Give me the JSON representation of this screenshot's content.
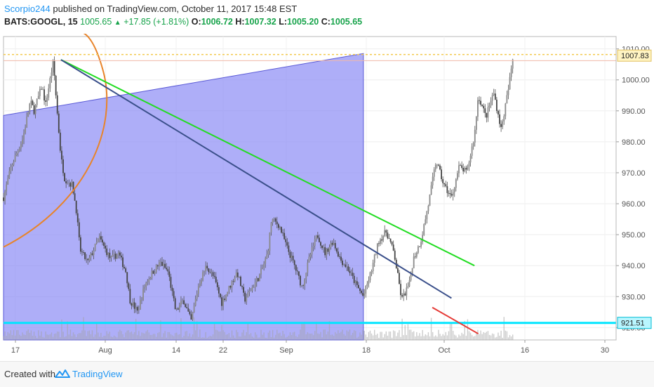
{
  "header": {
    "author": "Scorpio244",
    "publish_text": "published on TradingView.com, October 11, 2017 15:48 EST",
    "symbol": "BATS:GOOGL, 15",
    "last": "1005.65",
    "change": "+17.85 (+1.81%)",
    "o_label": "O:",
    "o_val": "1006.72",
    "h_label": "H:",
    "h_val": "1007.32",
    "l_label": "L:",
    "l_val": "1005.20",
    "c_label": "C:",
    "c_val": "1005.65"
  },
  "footer": {
    "created_with": "Created with",
    "brand": "TradingView"
  },
  "colors": {
    "shade": "#8f8ff5",
    "support": "#00e5ff",
    "resistance_dotted": "#f2c94c",
    "green_line": "#22dd22",
    "navy_line": "#3a4f8a",
    "red_line": "#e53935",
    "arc": "#e8842a",
    "candle": "#555555"
  },
  "chart_data": {
    "type": "candlestick",
    "ylim": [
      916,
      1014
    ],
    "y_ticks": [
      "1010.00",
      "1000.00",
      "990.00",
      "980.00",
      "970.00",
      "960.00",
      "950.00",
      "940.00",
      "930.00",
      "920.00"
    ],
    "y_tick_values": [
      1010,
      1000,
      990,
      980,
      970,
      960,
      950,
      940,
      930,
      920
    ],
    "x_ticks": [
      "17",
      "Aug",
      "14",
      "22",
      "Sep",
      "18",
      "Oct",
      "16",
      "30"
    ],
    "price_labels": [
      {
        "text": "1007.83",
        "value": 1007.83
      },
      {
        "text": "921.51",
        "value": 921.51
      }
    ],
    "close_path": [
      [
        0,
        962
      ],
      [
        2,
        972
      ],
      [
        5,
        981
      ],
      [
        7,
        993
      ],
      [
        8,
        990
      ],
      [
        10,
        998
      ],
      [
        11,
        992
      ],
      [
        13,
        1006
      ],
      [
        14,
        990
      ],
      [
        15,
        975
      ],
      [
        16,
        968
      ],
      [
        18,
        966
      ],
      [
        19,
        958
      ],
      [
        20,
        945
      ],
      [
        22,
        941
      ],
      [
        25,
        949
      ],
      [
        28,
        942
      ],
      [
        30,
        944
      ],
      [
        32,
        938
      ],
      [
        33,
        929
      ],
      [
        35,
        925
      ],
      [
        37,
        934
      ],
      [
        39,
        938
      ],
      [
        41,
        941
      ],
      [
        43,
        938
      ],
      [
        45,
        925
      ],
      [
        47,
        929
      ],
      [
        49,
        922
      ],
      [
        51,
        934
      ],
      [
        53,
        940
      ],
      [
        55,
        936
      ],
      [
        57,
        928
      ],
      [
        59,
        933
      ],
      [
        61,
        938
      ],
      [
        63,
        929
      ],
      [
        65,
        933
      ],
      [
        67,
        937
      ],
      [
        69,
        944
      ],
      [
        70,
        955
      ],
      [
        72,
        953
      ],
      [
        74,
        946
      ],
      [
        76,
        940
      ],
      [
        78,
        933
      ],
      [
        80,
        943
      ],
      [
        82,
        950
      ],
      [
        84,
        944
      ],
      [
        86,
        948
      ],
      [
        88,
        942
      ],
      [
        90,
        939
      ],
      [
        92,
        934
      ],
      [
        94,
        930
      ],
      [
        96,
        938
      ],
      [
        98,
        948
      ],
      [
        100,
        951
      ],
      [
        102,
        944
      ],
      [
        104,
        929
      ],
      [
        106,
        934
      ],
      [
        107,
        942
      ],
      [
        109,
        948
      ],
      [
        111,
        960
      ],
      [
        113,
        974
      ],
      [
        115,
        966
      ],
      [
        117,
        962
      ],
      [
        119,
        972
      ],
      [
        121,
        970
      ],
      [
        123,
        982
      ],
      [
        124,
        995
      ],
      [
        126,
        988
      ],
      [
        128,
        996
      ],
      [
        130,
        984
      ],
      [
        132,
        998
      ],
      [
        133,
        1006.8
      ]
    ],
    "candle_x_range": [
      0,
      133
    ],
    "x_range": [
      0,
      160
    ],
    "annotations": [
      {
        "type": "shaded_region",
        "x": [
          0,
          94
        ],
        "y_left": [
          988.5,
          916
        ],
        "y_right": [
          1008.5,
          916
        ]
      },
      {
        "type": "trendline",
        "name": "green",
        "x": [
          15,
          123
        ],
        "y": [
          1006.5,
          940
        ]
      },
      {
        "type": "trendline",
        "name": "navy",
        "x": [
          15,
          117
        ],
        "y": [
          1006.5,
          929.5
        ]
      },
      {
        "type": "trendline",
        "name": "red",
        "x": [
          112,
          124
        ],
        "y": [
          926.5,
          918
        ]
      },
      {
        "type": "hline",
        "name": "support",
        "y": 921.51
      },
      {
        "type": "hline",
        "name": "resistance",
        "y": 1008.2,
        "style": "dotted"
      }
    ]
  }
}
